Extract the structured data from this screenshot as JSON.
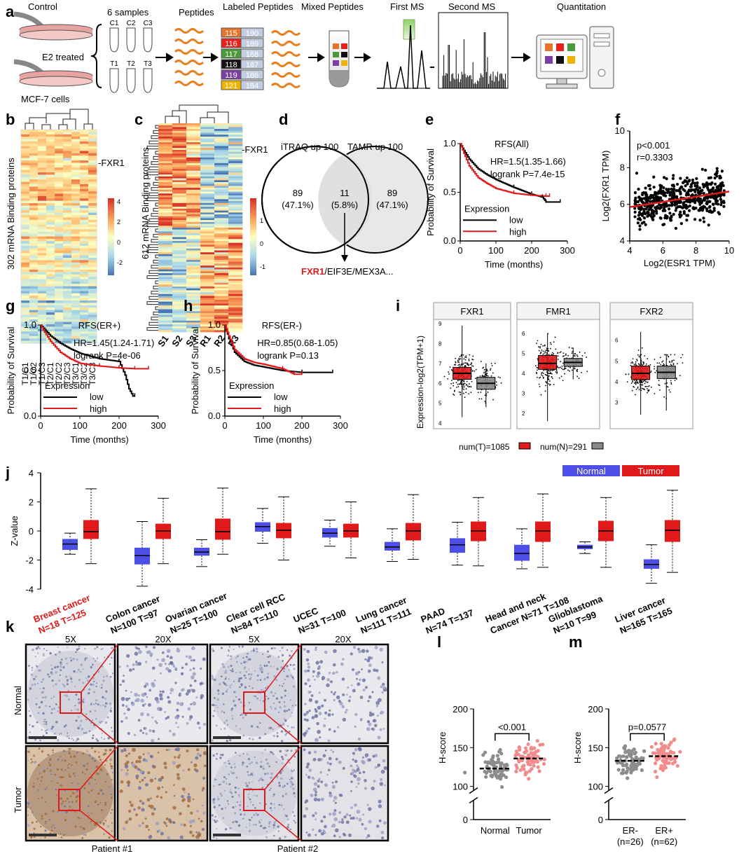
{
  "panels": {
    "a": "a",
    "b": "b",
    "c": "c",
    "d": "d",
    "e": "e",
    "f": "f",
    "g": "g",
    "h": "h",
    "i": "i",
    "j": "j",
    "k": "k",
    "l": "l",
    "m": "m"
  },
  "panel_a": {
    "control": "Control",
    "e2": "E2 treated",
    "cells": "MCF-7 cells",
    "samples": "6 samples",
    "tubes_top": [
      "C1",
      "C2",
      "C3"
    ],
    "tubes_bottom": [
      "T1",
      "T2",
      "T3"
    ],
    "peptides": "Peptides",
    "labeled": "Labeled Peptides",
    "mixed": "Mixed Peptides",
    "first_ms": "First MS",
    "second_ms": "Second MS",
    "quant": "Quantitation",
    "tags": [
      {
        "left": "115",
        "right": "190",
        "color": "#e8742a"
      },
      {
        "left": "116",
        "right": "189",
        "color": "#e8201c"
      },
      {
        "left": "117",
        "right": "188",
        "color": "#4a9a3a"
      },
      {
        "left": "118",
        "right": "187",
        "color": "#111111"
      },
      {
        "left": "119",
        "right": "186",
        "color": "#7a3fa0"
      },
      {
        "left": "121",
        "right": "184",
        "color": "#f0b400"
      }
    ]
  },
  "panel_b": {
    "ylabel": "302 mRNA Binding proteins",
    "marker": "-FXR1",
    "scale": [
      "4",
      "2",
      "0",
      "-2"
    ],
    "columns": [
      "T1/C1",
      "T1/C2",
      "T1/C3",
      "T2/C1",
      "T2/C2",
      "T2/C3",
      "T3/C1",
      "T3/C2",
      "T3/C3"
    ]
  },
  "panel_c": {
    "ylabel": "612 mRNA Binding proteins",
    "marker": "-FXR1",
    "scale": [
      "1",
      "0",
      "-1"
    ],
    "columns": [
      "S1",
      "S2",
      "S3",
      "R1",
      "R2",
      "R3"
    ]
  },
  "panel_d": {
    "left_title": "iTRAQ up 100",
    "right_title": "TAMR up 100",
    "left_n": "89",
    "left_pct": "(47.1%)",
    "mid_n": "11",
    "mid_pct": "(5.8%)",
    "right_n": "89",
    "right_pct": "(47.1%)",
    "genes_highlight": "FXR1",
    "genes_rest": "/EIF3E/MEX3A..."
  },
  "km_e": {
    "title": "RFS(All)",
    "hr": "HR=1.5(1.35-1.66)",
    "logrank": "logrank P=7.4e-15",
    "xlabel": "Time (months)",
    "ylabel": "Probability of Survival",
    "xticks": [
      "0",
      "100",
      "200",
      "300"
    ],
    "yticks": [
      "0.0",
      "0.5",
      "1.0"
    ],
    "legend_title": "Expression",
    "legend_low": "low",
    "legend_high": "high",
    "low": [
      [
        0,
        1.0
      ],
      [
        10,
        0.93
      ],
      [
        25,
        0.84
      ],
      [
        50,
        0.74
      ],
      [
        75,
        0.68
      ],
      [
        100,
        0.63
      ],
      [
        150,
        0.55
      ],
      [
        200,
        0.48
      ],
      [
        230,
        0.45
      ],
      [
        240,
        0.4
      ],
      [
        280,
        0.4
      ]
    ],
    "high": [
      [
        0,
        1.0
      ],
      [
        10,
        0.9
      ],
      [
        25,
        0.77
      ],
      [
        50,
        0.65
      ],
      [
        75,
        0.59
      ],
      [
        100,
        0.54
      ],
      [
        150,
        0.49
      ],
      [
        200,
        0.47
      ],
      [
        240,
        0.46
      ],
      [
        250,
        0.46
      ]
    ]
  },
  "scatter_f": {
    "stat_p": "p<0.001",
    "stat_r": "r=0.3303",
    "xlabel": "Log2(ESR1 TPM)",
    "ylabel": "Log2(FXR1 TPM)",
    "xticks": [
      "4",
      "6",
      "8",
      "10"
    ],
    "yticks": [
      "4",
      "6",
      "8",
      "10"
    ],
    "fit": {
      "x0": 4,
      "y0": 5.85,
      "x1": 10,
      "y1": 6.7
    }
  },
  "km_g": {
    "title": "RFS(ER+)",
    "hr": "HR=1.45(1.24-1.71)",
    "logrank": "logrank P=4e-06",
    "xlabel": "Time (months)",
    "ylabel": "Probability of Survival",
    "xticks": [
      "0",
      "100",
      "200",
      "300"
    ],
    "yticks": [
      "0.0",
      "0.5",
      "1.0"
    ],
    "legend_title": "Expression",
    "legend_low": "low",
    "legend_high": "high",
    "low": [
      [
        0,
        1.0
      ],
      [
        10,
        0.95
      ],
      [
        25,
        0.88
      ],
      [
        50,
        0.8
      ],
      [
        75,
        0.74
      ],
      [
        100,
        0.69
      ],
      [
        150,
        0.63
      ],
      [
        200,
        0.6
      ],
      [
        215,
        0.45
      ],
      [
        225,
        0.3
      ],
      [
        235,
        0.22
      ],
      [
        240,
        0.22
      ]
    ],
    "high": [
      [
        0,
        1.0
      ],
      [
        10,
        0.92
      ],
      [
        25,
        0.82
      ],
      [
        50,
        0.7
      ],
      [
        75,
        0.63
      ],
      [
        100,
        0.58
      ],
      [
        150,
        0.55
      ],
      [
        200,
        0.53
      ],
      [
        240,
        0.52
      ],
      [
        275,
        0.52
      ]
    ]
  },
  "km_h": {
    "title": "RFS(ER-)",
    "hr": "HR=0.85(0.68-1.05)",
    "logrank": "logrank P=0.13",
    "xlabel": "Time (months)",
    "ylabel": "Probability of Survival",
    "xticks": [
      "0",
      "100",
      "200",
      "300"
    ],
    "yticks": [
      "0.0",
      "0.5",
      "1.0"
    ],
    "legend_title": "Expression",
    "legend_low": "low",
    "legend_high": "high",
    "low": [
      [
        0,
        1.0
      ],
      [
        10,
        0.85
      ],
      [
        25,
        0.7
      ],
      [
        50,
        0.6
      ],
      [
        75,
        0.56
      ],
      [
        100,
        0.54
      ],
      [
        150,
        0.5
      ],
      [
        200,
        0.48
      ],
      [
        280,
        0.48
      ]
    ],
    "high": [
      [
        0,
        1.0
      ],
      [
        10,
        0.88
      ],
      [
        25,
        0.73
      ],
      [
        50,
        0.63
      ],
      [
        75,
        0.59
      ],
      [
        100,
        0.57
      ],
      [
        150,
        0.52
      ],
      [
        180,
        0.46
      ],
      [
        200,
        0.46
      ]
    ]
  },
  "panel_i": {
    "ylabel": "Expression-log2(TPM+1)",
    "genes": [
      {
        "name": "FXR1",
        "yticks": [
          "4",
          "5",
          "6",
          "7",
          "8",
          "9"
        ],
        "ymin": 4,
        "ymax": 9,
        "tumor": {
          "q1": 6.2,
          "med": 6.5,
          "q3": 6.8,
          "lo": 4.3,
          "hi": 8.9
        },
        "normal": {
          "q1": 5.7,
          "med": 6.0,
          "q3": 6.3,
          "lo": 4.8,
          "hi": 7.0
        }
      },
      {
        "name": "FMR1",
        "yticks": [
          "2",
          "3",
          "4",
          "5",
          "6"
        ],
        "ymin": 1.5,
        "ymax": 6.5,
        "tumor": {
          "q1": 4.2,
          "med": 4.5,
          "q3": 4.9,
          "lo": 1.6,
          "hi": 6.0
        },
        "normal": {
          "q1": 4.35,
          "med": 4.55,
          "q3": 4.75,
          "lo": 3.7,
          "hi": 5.3
        }
      },
      {
        "name": "FXR2",
        "yticks": [
          "3",
          "4",
          "5",
          "6"
        ],
        "ymin": 2.0,
        "ymax": 6.8,
        "tumor": {
          "q1": 4.1,
          "med": 4.4,
          "q3": 4.75,
          "lo": 2.4,
          "hi": 6.4
        },
        "normal": {
          "q1": 4.15,
          "med": 4.45,
          "q3": 4.75,
          "lo": 2.6,
          "hi": 5.3
        }
      }
    ],
    "legend_t": "num(T)=1085",
    "legend_n": "num(N)=291"
  },
  "chart_data": {
    "type": "box",
    "title": "",
    "ylabel": "Z-value",
    "ylim": [
      -4,
      4
    ],
    "yticks": [
      "4",
      "2",
      "0",
      "-2",
      "-4"
    ],
    "legend": [
      "Normal",
      "Tumor"
    ],
    "colors": {
      "normal": "#4d4de8",
      "tumor": "#e0191b"
    },
    "categories": [
      {
        "line1": "Breast cancer",
        "line2": "N=18  T=125",
        "highlight": true,
        "normal": {
          "lo": -1.6,
          "q1": -1.3,
          "med": -0.9,
          "q3": -0.55,
          "hi": -0.15
        },
        "tumor": {
          "lo": -2.25,
          "q1": -0.55,
          "med": -0.05,
          "q3": 0.75,
          "hi": 2.9
        }
      },
      {
        "line1": "Colon cancer",
        "line2": "N=100  T=97",
        "highlight": false,
        "normal": {
          "lo": -3.8,
          "q1": -2.3,
          "med": -1.7,
          "q3": -1.15,
          "hi": 0.65
        },
        "tumor": {
          "lo": -2.25,
          "q1": -0.55,
          "med": 0.0,
          "q3": 0.5,
          "hi": 2.25
        }
      },
      {
        "line1": "Ovarian cancer",
        "line2": "N=25  T=100",
        "highlight": false,
        "normal": {
          "lo": -2.45,
          "q1": -1.7,
          "med": -1.45,
          "q3": -1.15,
          "hi": -0.6
        },
        "tumor": {
          "lo": -1.6,
          "q1": -0.6,
          "med": -0.05,
          "q3": 0.85,
          "hi": 2.95
        }
      },
      {
        "line1": "Clear cell RCC",
        "line2": "N=84  T=110",
        "highlight": false,
        "normal": {
          "lo": -0.85,
          "q1": -0.05,
          "med": 0.3,
          "q3": 0.6,
          "hi": 1.55
        },
        "tumor": {
          "lo": -2.0,
          "q1": -0.5,
          "med": 0.05,
          "q3": 0.55,
          "hi": 2.35
        }
      },
      {
        "line1": "UCEC",
        "line2": "N=31  T=100",
        "highlight": false,
        "normal": {
          "lo": -1.05,
          "q1": -0.45,
          "med": -0.15,
          "q3": 0.2,
          "hi": 0.75
        },
        "tumor": {
          "lo": -1.85,
          "q1": -0.45,
          "med": 0.0,
          "q3": 0.5,
          "hi": 2.0
        }
      },
      {
        "line1": "Lung cancer",
        "line2": "N=111  T=111",
        "highlight": false,
        "normal": {
          "lo": -2.1,
          "q1": -1.35,
          "med": -1.1,
          "q3": -0.75,
          "hi": 0.15
        },
        "tumor": {
          "lo": -1.95,
          "q1": -0.65,
          "med": 0.0,
          "q3": 0.55,
          "hi": 2.5
        }
      },
      {
        "line1": "PAAD",
        "line2": "N=74  T=137",
        "highlight": false,
        "normal": {
          "lo": -2.35,
          "q1": -1.5,
          "med": -0.95,
          "q3": -0.5,
          "hi": 0.6
        },
        "tumor": {
          "lo": -2.4,
          "q1": -0.7,
          "med": 0.0,
          "q3": 0.65,
          "hi": 2.3
        }
      },
      {
        "line1": "Head and neck",
        "line2": "Cancer  N=71  T=108",
        "highlight": false,
        "normal": {
          "lo": -2.6,
          "q1": -2.05,
          "med": -1.55,
          "q3": -0.95,
          "hi": 0.15
        },
        "tumor": {
          "lo": -2.5,
          "q1": -0.75,
          "med": 0.0,
          "q3": 0.65,
          "hi": 2.55
        }
      },
      {
        "line1": "Glioblastoma",
        "line2": "N=10  T=99",
        "highlight": false,
        "normal": {
          "lo": -1.55,
          "q1": -1.25,
          "med": -1.1,
          "q3": -0.95,
          "hi": -0.75
        },
        "tumor": {
          "lo": -2.5,
          "q1": -0.7,
          "med": 0.0,
          "q3": 0.7,
          "hi": 2.3
        }
      },
      {
        "line1": "Liver cancer",
        "line2": "N=165  T=165",
        "highlight": false,
        "normal": {
          "lo": -3.6,
          "q1": -2.6,
          "med": -2.3,
          "q3": -1.95,
          "hi": -0.95
        },
        "tumor": {
          "lo": -2.85,
          "q1": -0.75,
          "med": 0.05,
          "q3": 0.75,
          "hi": 2.8
        }
      }
    ]
  },
  "panel_k": {
    "mag5x": "5X",
    "mag20x": "20X",
    "normal": "Normal",
    "tumor": "Tumor",
    "patient1": "Patient #1",
    "patient2": "Patient #2"
  },
  "panel_l": {
    "ylabel": "H-score",
    "yticks": [
      "200",
      "150",
      "100",
      "0"
    ],
    "pval": "<0.001",
    "groups": [
      {
        "name": "Normal",
        "sub": "",
        "mean": 123,
        "color": "#8c8c8c"
      },
      {
        "name": "Tumor",
        "sub": "",
        "mean": 136,
        "color": "#f28c8c"
      }
    ]
  },
  "panel_m": {
    "ylabel": "H-score",
    "yticks": [
      "200",
      "150",
      "100",
      "0"
    ],
    "pval": "p=0.0577",
    "groups": [
      {
        "name": "ER-",
        "sub": "(n=26)",
        "mean": 133,
        "color": "#8c8c8c"
      },
      {
        "name": "ER+",
        "sub": "(n=62)",
        "mean": 139,
        "color": "#f28c8c"
      }
    ]
  }
}
